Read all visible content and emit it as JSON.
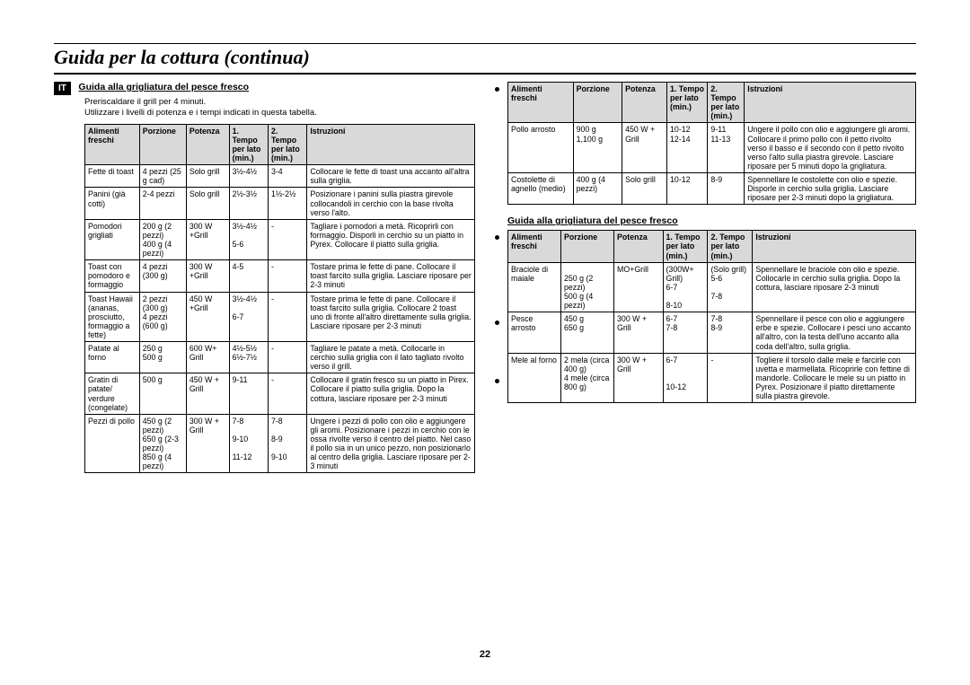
{
  "page": {
    "title": "Guida per la cottura (continua)",
    "lang_badge": "IT",
    "number": "22"
  },
  "left": {
    "section_title": "Guida alla grigliatura del pesce fresco",
    "intro_line1": "Preriscaldare il grill per 4 minuti.",
    "intro_line2": "Utilizzare i livelli di potenza e i tempi indicati in questa tabella.",
    "headers": {
      "c1": "Alimenti freschi",
      "c2": "Porzione",
      "c3": "Potenza",
      "c4": "1. Tempo per lato (min.)",
      "c5": "2. Tempo per lato (min.)",
      "c6": "Istruzioni"
    },
    "rows": [
      {
        "c1": "Fette di toast",
        "c2": "4 pezzi (25 g cad)",
        "c3": "Solo grill",
        "c4": "3½-4½",
        "c5": "3-4",
        "c6": "Collocare le fette di toast una accanto all'altra sulla griglia."
      },
      {
        "c1": "Panini (già cotti)",
        "c2": "2-4 pezzi",
        "c3": "Solo grill",
        "c4": "2½-3½",
        "c5": "1½-2½",
        "c6": "Posizionare i panini sulla piastra girevole collocandoli in cerchio con la base rivolta verso l'alto."
      },
      {
        "c1": "Pomodori grigliati",
        "c2": "200 g (2 pezzi)\n400 g (4 pezzi)",
        "c3": "300 W +Grill",
        "c4": "3½-4½\n\n5-6",
        "c5": "-",
        "c6": "Tagliare i pomodori a metà. Ricoprirli con formaggio. Disporli in cerchio su un piatto in Pyrex. Collocare il piatto sulla griglia."
      },
      {
        "c1": "Toast con pomodoro e formaggio",
        "c2": "4 pezzi (300 g)",
        "c3": "300 W +Grill",
        "c4": "4-5",
        "c5": "-",
        "c6": "Tostare prima le fette di pane. Collocare il toast farcito sulla griglia. Lasciare riposare per 2-3 minuti"
      },
      {
        "c1": "Toast Hawaii (ananas, prosciutto, formaggio a fette)",
        "c2": "2 pezzi (300 g)\n4 pezzi (600 g)",
        "c3": "450 W +Grill",
        "c4": "3½-4½\n\n6-7",
        "c5": "-",
        "c6": "Tostare prima le fette di pane. Collocare il toast farcito sulla griglia. Collocare 2 toast uno di fronte all'altro direttamente sulla griglia. Lasciare riposare per 2-3 minuti"
      },
      {
        "c1": "Patate al forno",
        "c2": "250 g\n500 g",
        "c3": "600 W+ Grill",
        "c4": "4½-5½\n6½-7½",
        "c5": "-",
        "c6": "Tagliare le patate a metà. Collocarle in cerchio sulla griglia con il lato tagliato rivolto verso il grill."
      },
      {
        "c1": "Gratin di patate/ verdure (congelate)",
        "c2": "500 g",
        "c3": "450 W + Grill",
        "c4": "9-11",
        "c5": "-",
        "c6": "Collocare il gratin fresco su un piatto in Pirex. Collocare il piatto sulla griglia. Dopo la cottura, lasciare riposare per 2-3 minuti"
      },
      {
        "c1": "Pezzi di pollo",
        "c2": "450 g (2 pezzi)\n650 g (2-3 pezzi)\n850 g (4 pezzi)",
        "c3": "300 W + Grill",
        "c4": "7-8\n\n9-10\n\n11-12",
        "c5": "7-8\n\n8-9\n\n9-10",
        "c6": "Ungere i pezzi di pollo con olio e aggiungere gli aromi. Posizionare i pezzi in cerchio con le ossa rivolte verso il centro del piatto. Nel caso il pollo sia in un unico pezzo, non posizionarlo al centro della griglia. Lasciare riposare per 2-3 minuti"
      }
    ]
  },
  "right_top": {
    "headers": {
      "c1": "Alimenti freschi",
      "c2": "Porzione",
      "c3": "Potenza",
      "c4": "1. Tempo per lato (min.)",
      "c5": "2. Tempo per lato (min.)",
      "c6": "Istruzioni"
    },
    "rows": [
      {
        "c1": "Pollo arrosto",
        "c2": "900 g\n1,100 g",
        "c3": "450 W + Grill",
        "c4": "10-12\n12-14",
        "c5": "9-11\n11-13",
        "c6": "Ungere il pollo con olio e aggiungere gli aromi. Collocare il primo pollo con il petto rivolto verso il basso e il secondo con il petto rivolto verso l'alto sulla piastra girevole. Lasciare riposare per 5 minuti dopo la grigliatura."
      },
      {
        "c1": "Costolette di agnello (medio)",
        "c2": "400 g (4 pezzi)",
        "c3": "Solo grill",
        "c4": "10-12",
        "c5": "8-9",
        "c6": "Spennellare le costolette con olio e spezie. Disporle in cerchio sulla griglia. Lasciare riposare per 2-3 minuti dopo la grigliatura."
      }
    ]
  },
  "right_bottom": {
    "section_title": "Guida alla grigliatura del pesce fresco",
    "headers": {
      "c1": "Alimenti freschi",
      "c2": "Porzione",
      "c3": "Potenza",
      "c4": "1. Tempo per lato (min.)",
      "c5": "2. Tempo per lato (min.)",
      "c6": "Istruzioni"
    },
    "rows": [
      {
        "c1": "Braciole di maiale",
        "c2": "\n250 g (2 pezzi)\n500 g (4 pezzi)",
        "c3": "MO+Grill",
        "c4": "(300W+ Grill)\n6-7\n\n8-10",
        "c5": "(Solo grill)\n5-6\n\n7-8",
        "c6": "Spennellare le braciole con olio e spezie. Collocarle in cerchio sulla griglia. Dopo la cottura, lasciare riposare 2-3 minuti"
      },
      {
        "c1": "Pesce arrosto",
        "c2": "450 g\n650 g",
        "c3": "300 W + Grill",
        "c4": "6-7\n7-8",
        "c5": "7-8\n8-9",
        "c6": "Spennellare il pesce con olio e aggiungere erbe e spezie. Collocare i pesci uno accanto all'altro, con la testa dell'uno accanto alla coda dell'altro, sulla griglia."
      },
      {
        "c1": "Mele al forno",
        "c2": "2 mela (circa 400 g)\n4 mele (circa 800 g)",
        "c3": "300 W + Grill",
        "c4": "6-7\n\n\n10-12",
        "c5": "-",
        "c6": "Togliere il torsolo dalle mele e farcirle con uvetta e marmellata. Ricoprirle con fettine di mandorle. Collocare le mele su un piatto in Pyrex. Posizionare il piatto direttamente sulla piastra girevole."
      }
    ]
  }
}
